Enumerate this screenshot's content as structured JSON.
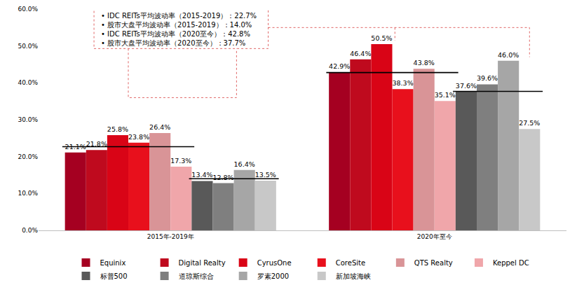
{
  "chart_data": {
    "type": "bar",
    "categories": [
      "2015年-2019年",
      "2020年至今"
    ],
    "series": [
      {
        "name": "Equinix",
        "color": "#a50021",
        "values": [
          21.1,
          42.9
        ],
        "value_labels": [
          "21.1%",
          "42.9%"
        ]
      },
      {
        "name": "Digital Realty",
        "color": "#bf0a1e",
        "values": [
          21.8,
          46.4
        ],
        "value_labels": [
          "21.8%",
          "46.4%"
        ]
      },
      {
        "name": "CyrusOne",
        "color": "#d90416",
        "values": [
          25.8,
          50.5
        ],
        "value_labels": [
          "25.8%",
          "50.5%"
        ]
      },
      {
        "name": "CoreSite",
        "color": "#e8101c",
        "values": [
          23.8,
          38.3
        ],
        "value_labels": [
          "23.8%",
          "38.3%"
        ]
      },
      {
        "name": "QTS Realty",
        "color": "#d99497",
        "values": [
          26.4,
          43.8
        ],
        "value_labels": [
          "26.4%",
          "43.8%"
        ]
      },
      {
        "name": "Keppel DC",
        "color": "#f0a6aa",
        "values": [
          17.3,
          35.1
        ],
        "value_labels": [
          "17.3%",
          "35.1%"
        ]
      },
      {
        "name": "标普500",
        "color": "#595959",
        "values": [
          13.4,
          37.6
        ],
        "value_labels": [
          "13.4%",
          "37.6%"
        ]
      },
      {
        "name": "道琼斯综合",
        "color": "#7f7f7f",
        "values": [
          12.8,
          39.6
        ],
        "value_labels": [
          "12.8%",
          "39.6%"
        ]
      },
      {
        "name": "罗素2000",
        "color": "#a6a6a6",
        "values": [
          16.4,
          46.0
        ],
        "value_labels": [
          "16.4%",
          "46.0%"
        ]
      },
      {
        "name": "新加坡海峡",
        "color": "#c8c8c8",
        "values": [
          13.5,
          27.5
        ],
        "value_labels": [
          "13.5%",
          "27.5%"
        ]
      }
    ],
    "reference_lines": [
      {
        "label": "• IDC REITs平均波动率（2015-2019）：22.7%",
        "value": 22.7,
        "category": "2015年-2019年",
        "series": [
          "Equinix",
          "Digital Realty",
          "CyrusOne",
          "CoreSite",
          "QTS Realty",
          "Keppel DC"
        ]
      },
      {
        "label": "• 股市大盘平均波动率（2015-2019）：14.0%",
        "value": 14.0,
        "category": "2015年-2019年",
        "series": [
          "标普500",
          "道琼斯综合",
          "罗素2000",
          "新加坡海峡"
        ]
      },
      {
        "label": "• IDC REITs平均波动率（2020至今）：42.8%",
        "value": 42.8,
        "category": "2020年至今",
        "series": [
          "Equinix",
          "Digital Realty",
          "CyrusOne",
          "CoreSite",
          "QTS Realty",
          "Keppel DC"
        ]
      },
      {
        "label": "• 股市大盘平均波动率（2020至今）：37.7%",
        "value": 37.7,
        "category": "2020年至今",
        "series": [
          "标普500",
          "道琼斯综合",
          "罗素2000",
          "新加坡海峡"
        ]
      }
    ],
    "ylim": [
      0,
      60
    ],
    "yticks": [
      {
        "value": 0,
        "label": "0.0%"
      },
      {
        "value": 10,
        "label": "10.0%"
      },
      {
        "value": 20,
        "label": "20.0%"
      },
      {
        "value": 30,
        "label": "30.0%"
      },
      {
        "value": 40,
        "label": "40.0%"
      },
      {
        "value": 50,
        "label": "50.0%"
      },
      {
        "value": 60,
        "label": "60.0%"
      }
    ],
    "grid": false,
    "legend": "bottom",
    "data_labels": true
  }
}
